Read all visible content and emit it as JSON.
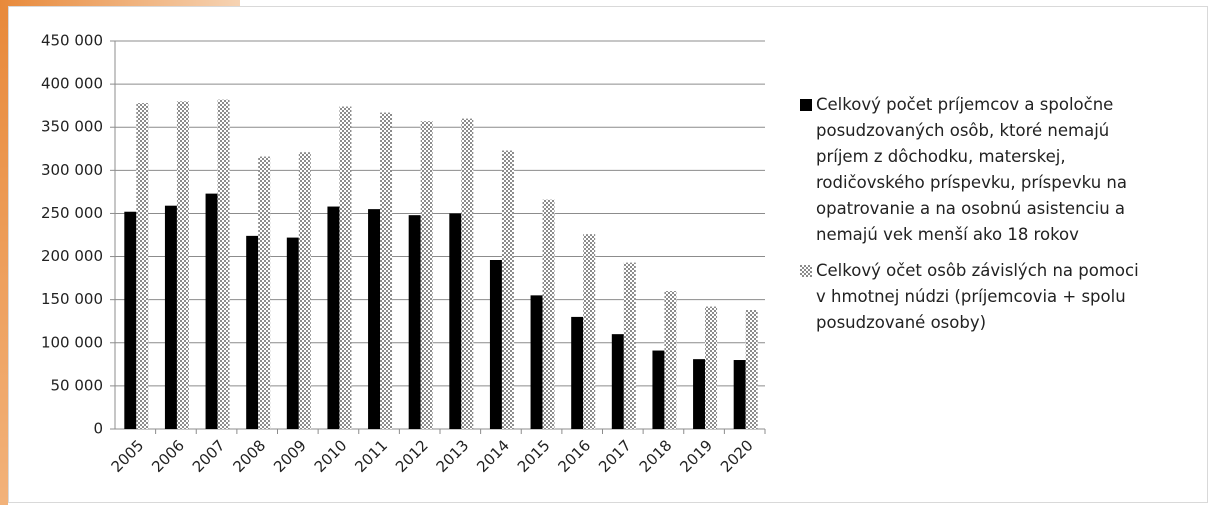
{
  "chart_data": {
    "type": "bar",
    "categories": [
      "2005",
      "2006",
      "2007",
      "2008",
      "2009",
      "2010",
      "2011",
      "2012",
      "2013",
      "2014",
      "2015",
      "2016",
      "2017",
      "2018",
      "2019",
      "2020"
    ],
    "series": [
      {
        "name": "Celkový počet príjemcov a spoločne posudzovaných osôb, ktoré nemajú príjem z dôchodku, materskej, rodičovského príspevku, príspevku na opatrovanie a na osobnú asistenciu a nemajú vek menší ako 18 rokov",
        "color": "#000000",
        "values": [
          252000,
          259000,
          273000,
          224000,
          222000,
          258000,
          255000,
          248000,
          250000,
          196000,
          155000,
          130000,
          110000,
          91000,
          81000,
          80000
        ]
      },
      {
        "name": "Celkový očet osôb závislých na pomoci v hmotnej núdzi (príjemcovia + spolu posudzované osoby)",
        "color": "#8c8c8c",
        "pattern": "checker",
        "values": [
          378000,
          380000,
          382000,
          316000,
          321000,
          374000,
          367000,
          357000,
          360000,
          323000,
          266000,
          226000,
          193000,
          160000,
          142000,
          138000
        ]
      }
    ],
    "ylim": [
      0,
      450000
    ],
    "yticks": [
      0,
      {
        "value": 50000,
        "label": "50 000"
      },
      {
        "value": 100000,
        "label": "100 000"
      },
      {
        "value": 150000,
        "label": "150 000"
      },
      {
        "value": 200000,
        "label": "200 000"
      },
      {
        "value": 250000,
        "label": "250 000"
      },
      {
        "value": 300000,
        "label": "300 000"
      },
      {
        "value": 350000,
        "label": "350 000"
      },
      {
        "value": 400000,
        "label": "400 000"
      },
      {
        "value": 450000,
        "label": "450 000"
      }
    ],
    "grid": true,
    "legend": "right"
  }
}
